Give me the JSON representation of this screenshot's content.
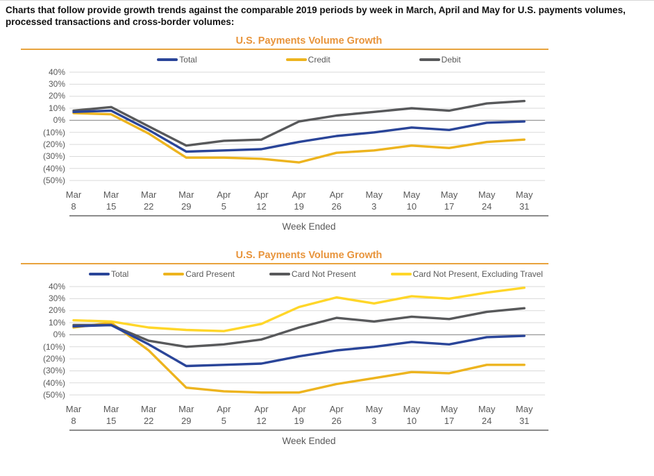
{
  "intro": "Charts that follow provide growth trends against the comparable 2019 periods by week in March, April and May for U.S. payments volumes, processed transactions and cross-border volumes:",
  "axis": {
    "xlabel": "Week Ended",
    "y_ticks": [
      "40%",
      "30%",
      "20%",
      "10%",
      "0%",
      "(10%)",
      "(20%)",
      "(30%)",
      "(40%)",
      "(50%)"
    ],
    "y_values": [
      40,
      30,
      20,
      10,
      0,
      -10,
      -20,
      -30,
      -40,
      -50
    ]
  },
  "colors": {
    "title_orange": "#E8943B",
    "rule_orange": "#E8A33D",
    "axis_text": "#595959",
    "gridline": "#DADADA",
    "zero_line": "#9E9E9E",
    "total_blue": "#2A4599",
    "gold": "#EDB41F",
    "dark_gray": "#58595B",
    "bright_yellow": "#FFD629"
  },
  "chart_data": [
    {
      "type": "line",
      "title": "U.S. Payments Volume Growth",
      "xlabel": "Week Ended",
      "ylim": [
        -50,
        40
      ],
      "grid": true,
      "legend_position": "top",
      "categories": [
        "Mar 8",
        "Mar 15",
        "Mar 22",
        "Mar 29",
        "Apr 5",
        "Apr 12",
        "Apr 19",
        "Apr 26",
        "May 3",
        "May 10",
        "May 17",
        "May 24",
        "May 31"
      ],
      "series": [
        {
          "name": "Total",
          "color": "#2A4599",
          "values": [
            7,
            8,
            -8,
            -26,
            -25,
            -24,
            -18,
            -13,
            -10,
            -6,
            -8,
            -2,
            -1
          ]
        },
        {
          "name": "Credit",
          "color": "#EDB41F",
          "values": [
            6,
            5,
            -11,
            -31,
            -31,
            -32,
            -35,
            -27,
            -25,
            -21,
            -23,
            -18,
            -16
          ]
        },
        {
          "name": "Debit",
          "color": "#58595B",
          "values": [
            8,
            11,
            -5,
            -21,
            -17,
            -16,
            -1,
            4,
            7,
            10,
            8,
            14,
            16
          ]
        }
      ]
    },
    {
      "type": "line",
      "title": "U.S. Payments Volume Growth",
      "xlabel": "Week Ended",
      "ylim": [
        -50,
        40
      ],
      "grid": true,
      "legend_position": "top",
      "categories": [
        "Mar 8",
        "Mar 15",
        "Mar 22",
        "Mar 29",
        "Apr 5",
        "Apr 12",
        "Apr 19",
        "Apr 26",
        "May 3",
        "May 10",
        "May 17",
        "May 24",
        "May 31"
      ],
      "series": [
        {
          "name": "Total",
          "color": "#2A4599",
          "values": [
            7,
            8,
            -8,
            -26,
            -25,
            -24,
            -18,
            -13,
            -10,
            -6,
            -8,
            -2,
            -1
          ]
        },
        {
          "name": "Card Present",
          "color": "#EDB41F",
          "values": [
            6,
            10,
            -13,
            -44,
            -47,
            -48,
            -48,
            -41,
            -36,
            -31,
            -32,
            -25,
            -25
          ]
        },
        {
          "name": "Card Not Present",
          "color": "#58595B",
          "values": [
            8,
            8,
            -5,
            -10,
            -8,
            -4,
            6,
            14,
            11,
            15,
            13,
            19,
            22
          ]
        },
        {
          "name": "Card Not Present, Excluding Travel",
          "color": "#FFD629",
          "values": [
            12,
            11,
            6,
            4,
            3,
            9,
            23,
            31,
            26,
            32,
            30,
            35,
            39
          ]
        }
      ]
    }
  ]
}
